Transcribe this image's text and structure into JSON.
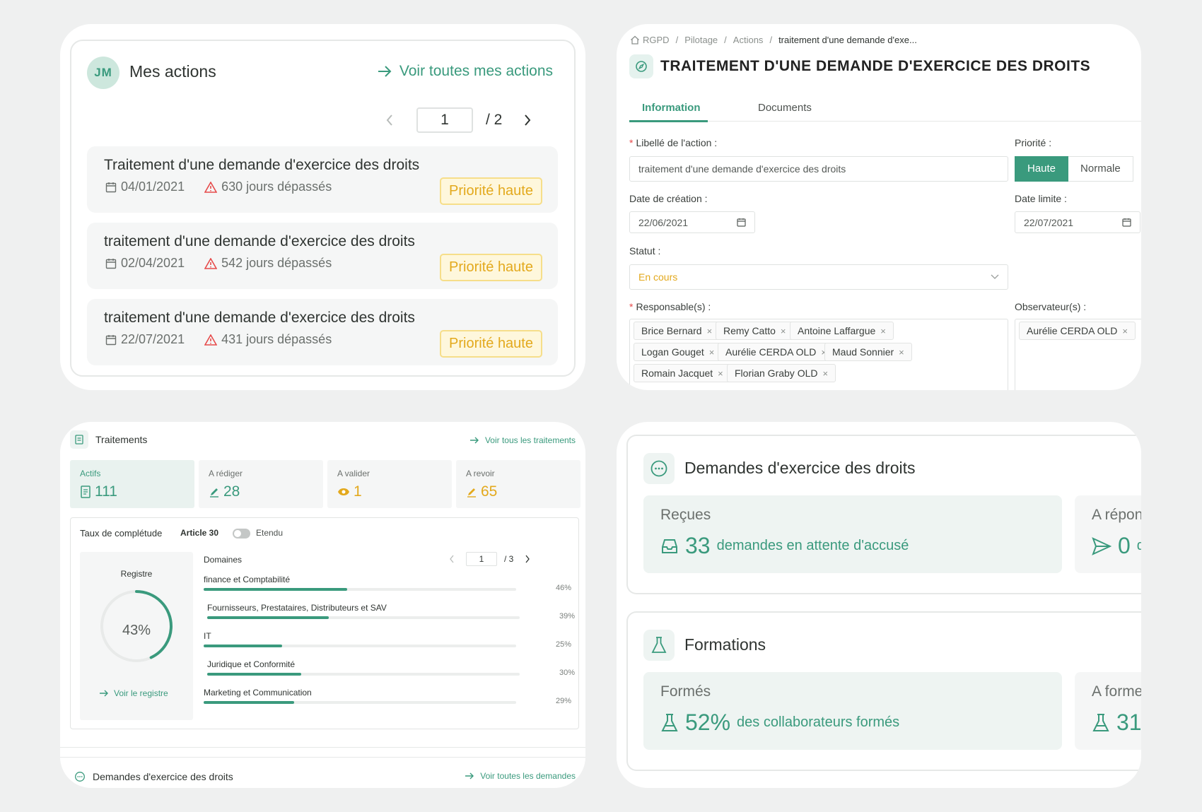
{
  "actions_card": {
    "avatar": "JM",
    "title": "Mes actions",
    "link": "Voir toutes mes actions",
    "pager": {
      "current": "1",
      "total": "/ 2"
    },
    "items": [
      {
        "title": "Traitement d'une demande d'exercice des droits",
        "date": "04/01/2021",
        "overdue": "630 jours dépassés",
        "badge": "Priorité haute"
      },
      {
        "title": "traitement d'une demande d'exercice des droits",
        "date": "02/04/2021",
        "overdue": "542 jours dépassés",
        "badge": "Priorité haute"
      },
      {
        "title": "traitement d'une demande d'exercice des droits",
        "date": "22/07/2021",
        "overdue": "431 jours dépassés",
        "badge": "Priorité haute"
      }
    ]
  },
  "detail_card": {
    "breadcrumb": [
      "RGPD",
      "Pilotage",
      "Actions",
      "traitement d'une demande d'exe..."
    ],
    "separator": "/",
    "title": "TRAITEMENT D'UNE DEMANDE D'EXERCICE DES DROITS",
    "tabs": [
      "Information",
      "Documents"
    ],
    "label_libelle": "Libellé de l'action :",
    "value_libelle": "traitement d'une demande d'exercice des droits",
    "label_priorite": "Priorité :",
    "priorite_options": [
      "Haute",
      "Normale"
    ],
    "label_creation": "Date de création :",
    "value_creation": "22/06/2021",
    "label_limite": "Date limite :",
    "value_limite": "22/07/2021",
    "label_statut": "Statut :",
    "value_statut": "En cours",
    "label_responsables": "Responsable(s) :",
    "responsables": [
      "Brice Bernard",
      "Remy Catto",
      "Antoine Laffargue",
      "Logan Gouget",
      "Aurélie CERDA OLD",
      "Maud Sonnier",
      "Romain Jacquet",
      "Florian Graby OLD"
    ],
    "label_observateurs": "Observateur(s) :",
    "observateurs": [
      "Aurélie CERDA OLD"
    ],
    "required_mark": "*",
    "remove_mark": "×"
  },
  "traitements_card": {
    "title": "Traitements",
    "link": "Voir tous les traitements",
    "stats": [
      {
        "label": "Actifs",
        "value": "111"
      },
      {
        "label": "A rédiger",
        "value": "28"
      },
      {
        "label": "A valider",
        "value": "1"
      },
      {
        "label": "A revoir",
        "value": "65"
      }
    ],
    "completude_title": "Taux de complétude",
    "article": "Article 30",
    "etendu": "Etendu",
    "registre_title": "Registre",
    "registre_pct": "43%",
    "registre_value": 0.43,
    "registre_link": "Voir le registre",
    "domaines_title": "Domaines",
    "dom_pager": {
      "current": "1",
      "total": "/ 3"
    },
    "domaines": [
      {
        "name": "finance et Comptabilité",
        "pct": "46%",
        "value": 0.46
      },
      {
        "name": "Fournisseurs, Prestataires, Distributeurs et SAV",
        "pct": "39%",
        "value": 0.39
      },
      {
        "name": "IT",
        "pct": "25%",
        "value": 0.25
      },
      {
        "name": "Juridique et Conformité",
        "pct": "30%",
        "value": 0.3
      },
      {
        "name": "Marketing et Communication",
        "pct": "29%",
        "value": 0.29
      }
    ],
    "footer_title": "Demandes d'exercice des droits",
    "footer_link": "Voir toutes les demandes"
  },
  "dashboard_card": {
    "demandes": {
      "title": "Demandes d'exercice des droits",
      "tile1_label": "Reçues",
      "tile1_value": "33",
      "tile1_text": "demandes en attente d'accusé",
      "tile2_label": "A répond",
      "tile2_value": "0",
      "tile2_text": "de"
    },
    "formations": {
      "title": "Formations",
      "tile1_label": "Formés",
      "tile1_value": "52%",
      "tile1_text": "des collaborateurs formés",
      "tile2_label": "A former",
      "tile2_value": "31"
    }
  },
  "colors": {
    "accent": "#3a9a7d",
    "warning": "#e3a91d",
    "danger": "#e64a4a"
  }
}
